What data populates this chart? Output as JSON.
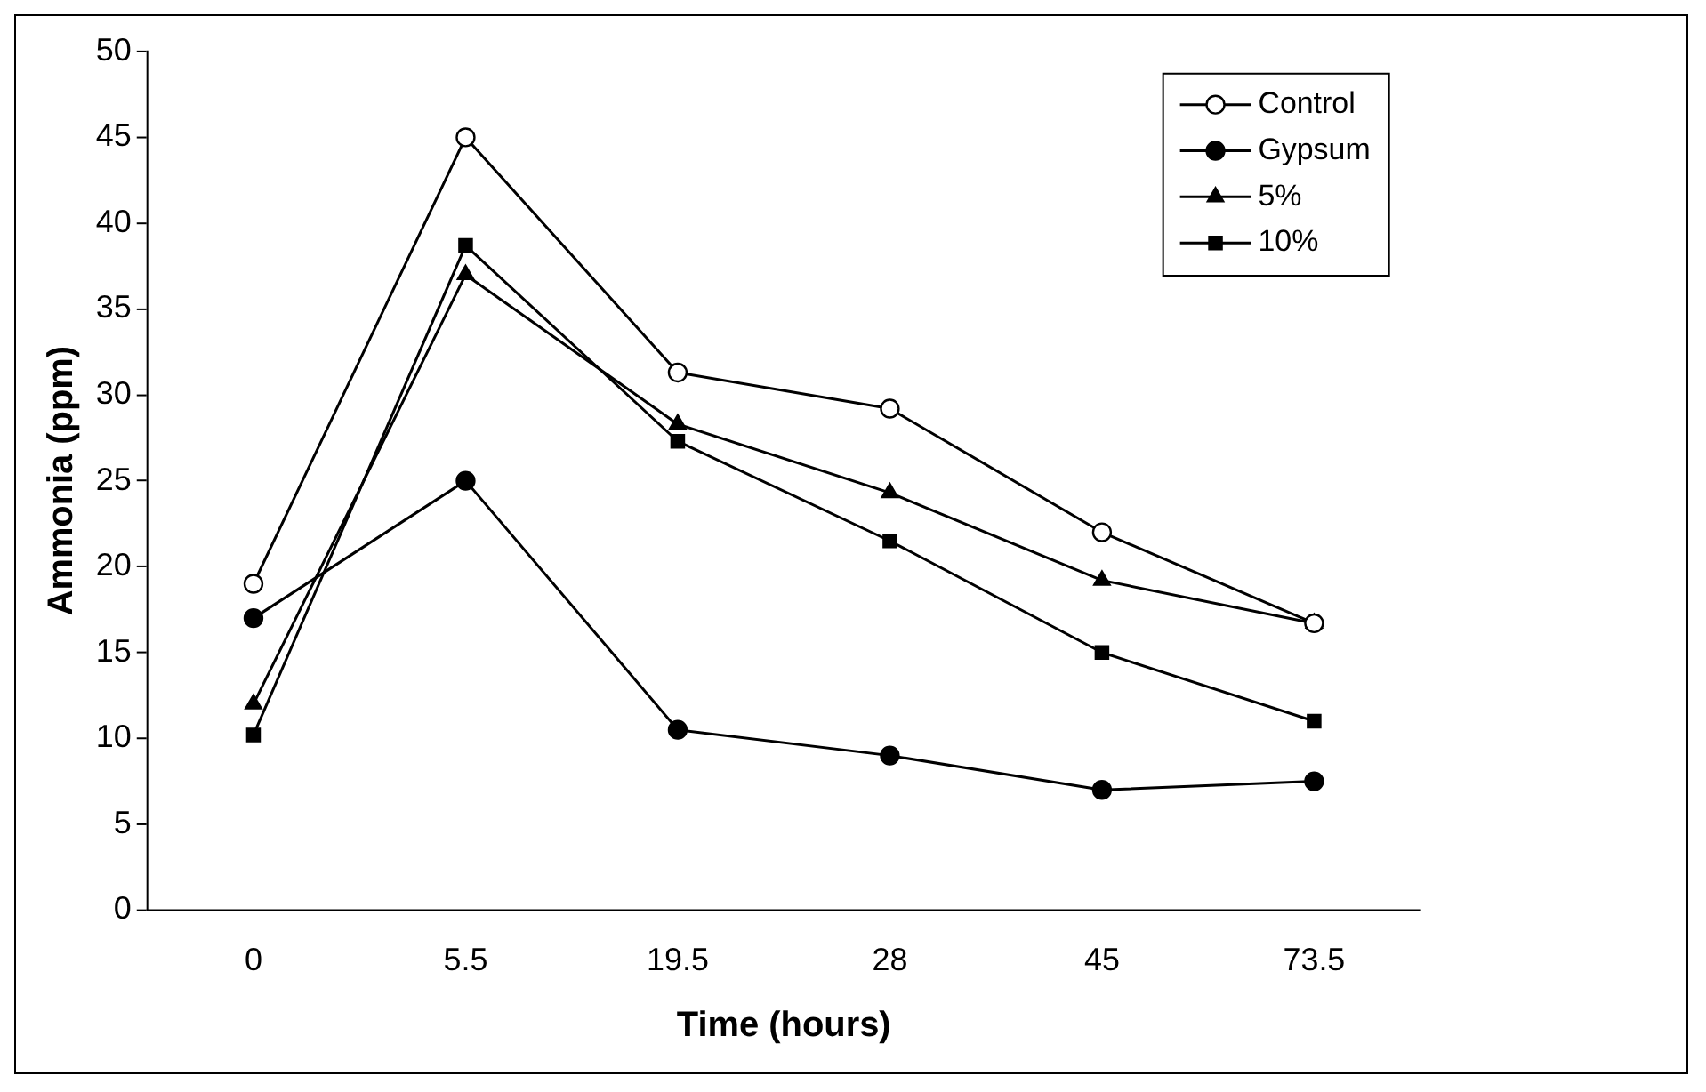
{
  "chart_data": {
    "type": "line",
    "xlabel": "Time (hours)",
    "ylabel": "Ammonia (ppm)",
    "categories": [
      "0",
      "5.5",
      "19.5",
      "28",
      "45",
      "73.5"
    ],
    "series": [
      {
        "name": "Control",
        "color": "#000000",
        "marker": "circle",
        "colors": [
          "#ffffff",
          "#ffffff",
          "#ffffff",
          "#ffffff",
          "#ffffff",
          "#ffffff"
        ],
        "values": [
          19,
          45,
          31.3,
          29.2,
          22,
          16.7
        ]
      },
      {
        "name": "Gypsum",
        "color": "#000000",
        "marker": "circle",
        "values": [
          17,
          25,
          10.5,
          9,
          7,
          7.5
        ]
      },
      {
        "name": "5%",
        "color": "#000000",
        "marker": "triangle",
        "values": [
          12,
          37,
          28.3,
          24.3,
          19.2,
          16.7
        ]
      },
      {
        "name": "10%",
        "color": "#000000",
        "marker": "square",
        "values": [
          10.2,
          38.7,
          27.3,
          21.5,
          15,
          11
        ]
      }
    ],
    "ylim": [
      0,
      50
    ],
    "yticks": [
      0,
      5,
      10,
      15,
      20,
      25,
      30,
      35,
      40,
      45,
      50
    ],
    "grid": false,
    "legend": "top right",
    "line_style": "solid"
  }
}
